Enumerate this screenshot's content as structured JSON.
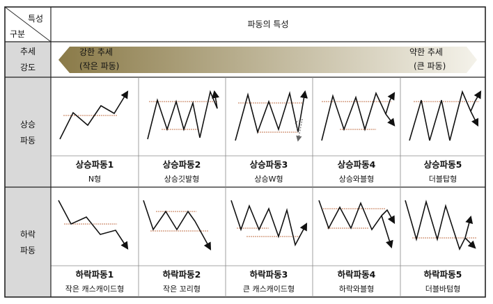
{
  "header": {
    "corner_top": "특성",
    "corner_bottom": "구분",
    "title": "파동의 특성"
  },
  "trend": {
    "row_label_1": "추세",
    "row_label_2": "강도",
    "left_line1": "강한 추세",
    "left_line2": "(작은 파동)",
    "right_line1": "약한 추세",
    "right_line2": "(큰 파동)",
    "arrow_color_left": "#8A7A48",
    "arrow_color_right": "#F4F2EA"
  },
  "rise": {
    "row_label_1": "상승",
    "row_label_2": "파동",
    "items": [
      {
        "name": "상승파동1",
        "desc": "N형"
      },
      {
        "name": "상승파동2",
        "desc": "상승깃발형"
      },
      {
        "name": "상승파동3",
        "desc": "상승W형"
      },
      {
        "name": "상승파동4",
        "desc": "상승와블형"
      },
      {
        "name": "상승파동5",
        "desc": "더블탑형"
      }
    ]
  },
  "fall": {
    "row_label_1": "하락",
    "row_label_2": "파동",
    "items": [
      {
        "name": "하락파동1",
        "desc": "작은 캐스캐이드형"
      },
      {
        "name": "하락파동2",
        "desc": "작은 꼬리형"
      },
      {
        "name": "하락파동3",
        "desc": "큰 캐스캐이드형"
      },
      {
        "name": "하락파동4",
        "desc": "하락와블형"
      },
      {
        "name": "하락파동5",
        "desc": "더블바텀형"
      }
    ]
  },
  "colors": {
    "label_bg": "#D9D9D9",
    "border": "#222222",
    "level_line": "#C0704A"
  }
}
